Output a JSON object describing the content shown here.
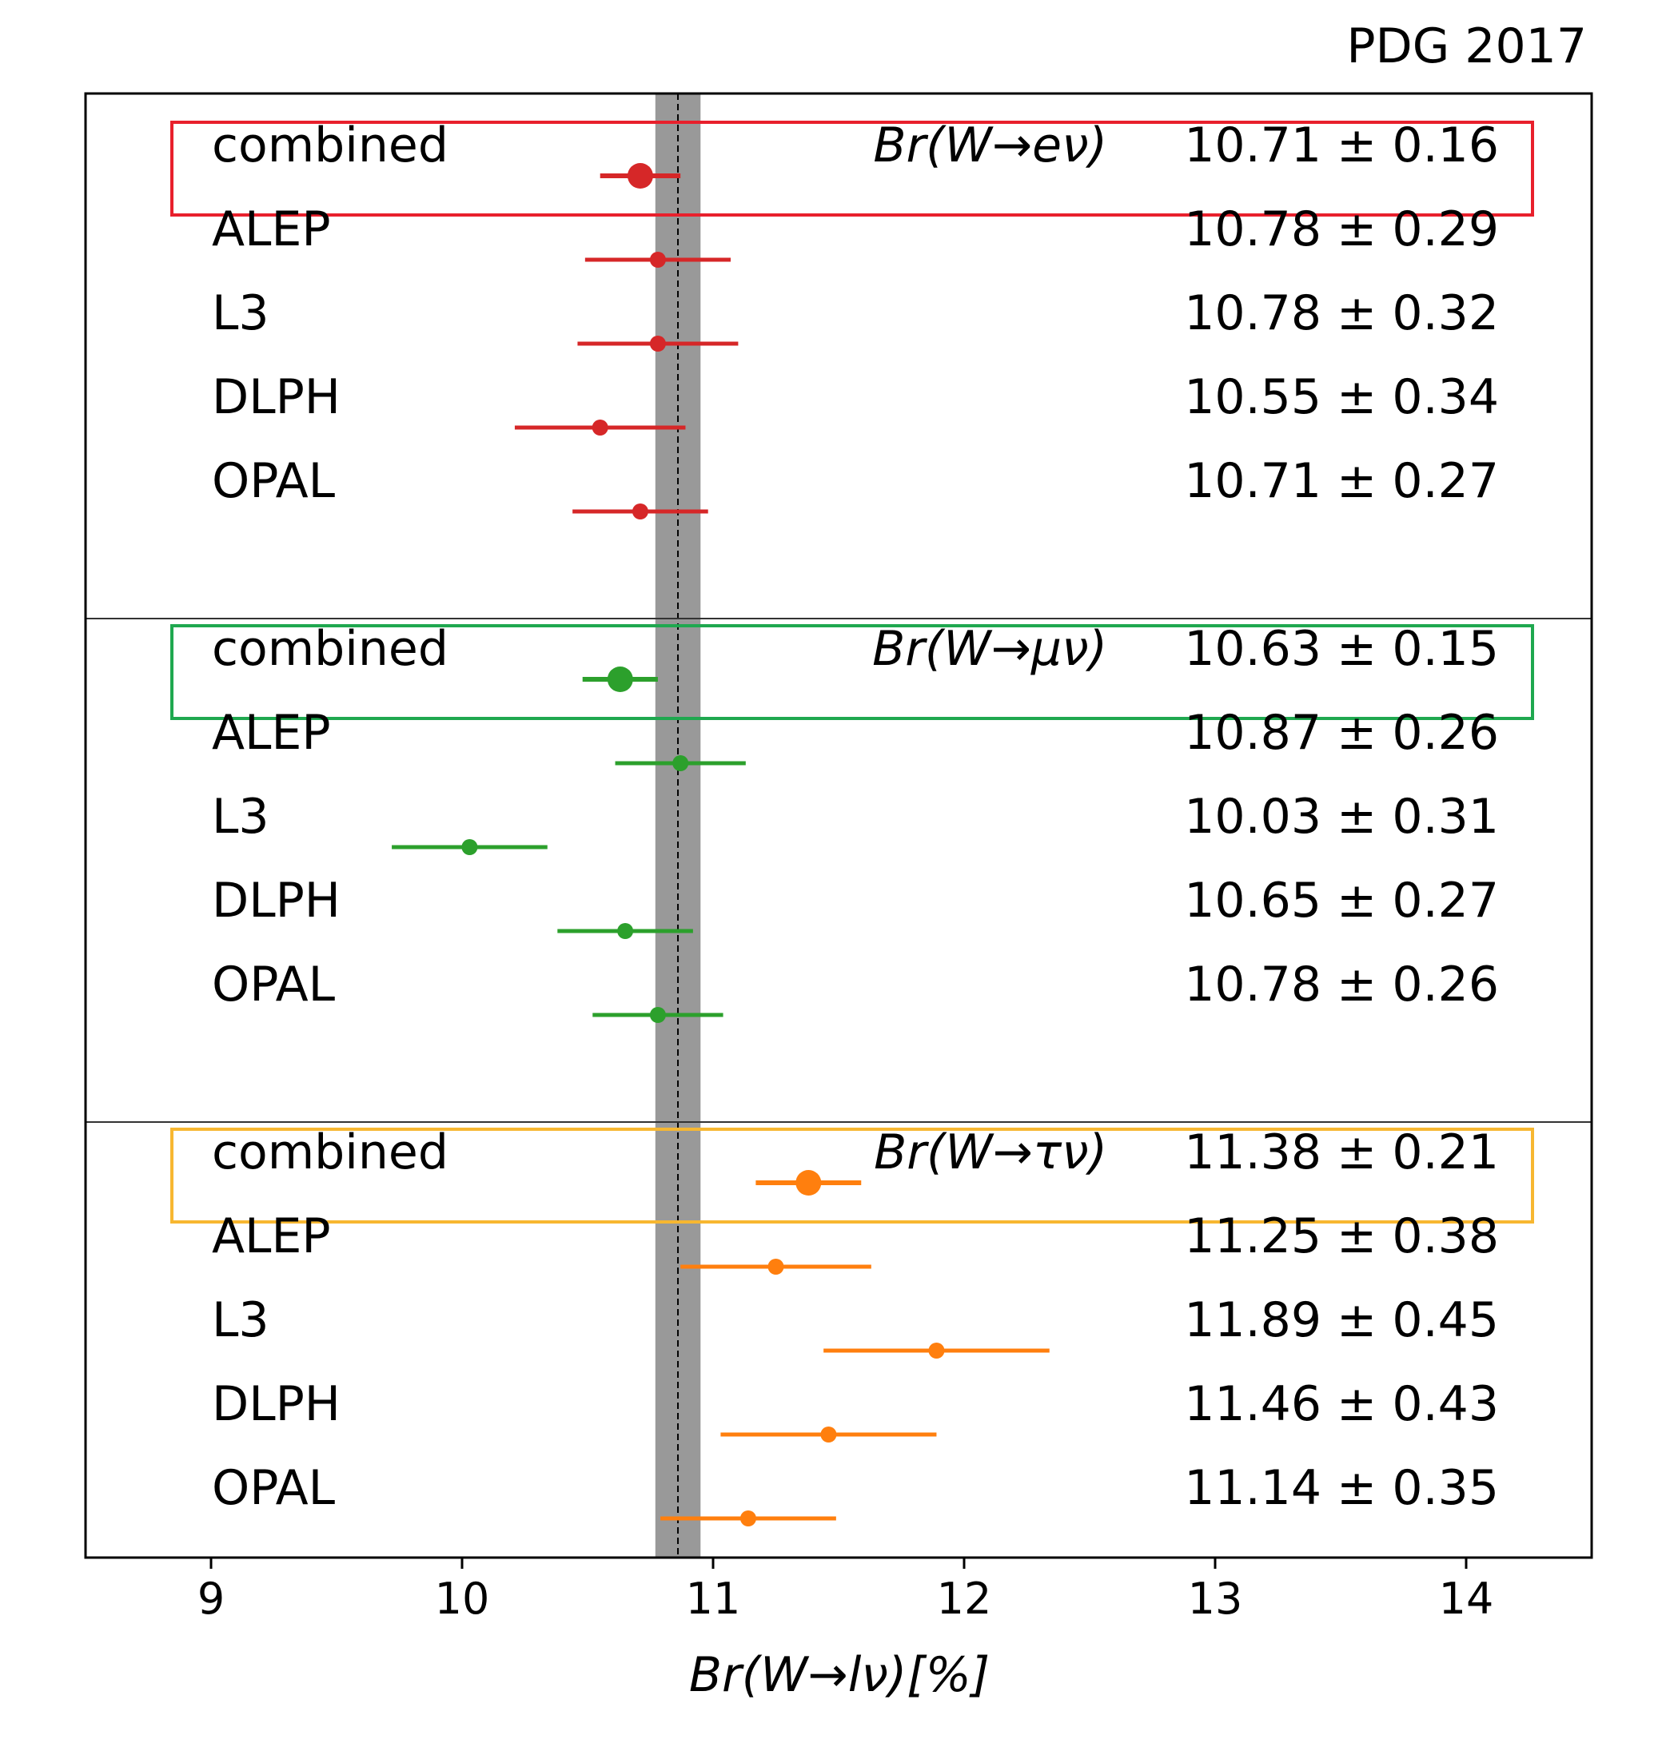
{
  "chart_data": {
    "type": "scatter",
    "title": "PDG 2017",
    "xlabel": "Br(W→lν)[%]",
    "xlim": [
      8.5,
      14.5
    ],
    "xticks": [
      9,
      10,
      11,
      12,
      13,
      14
    ],
    "average": 10.86,
    "band": [
      10.77,
      10.95
    ],
    "grid": false,
    "groups": [
      {
        "label": "Br(W→eν)",
        "color": "#d62728",
        "box_color": "#e8202c",
        "entries": [
          {
            "name": "combined",
            "value": 10.71,
            "error": 0.16,
            "text": "10.71 ± 0.16"
          },
          {
            "name": "ALEP",
            "value": 10.78,
            "error": 0.29,
            "text": "10.78 ± 0.29"
          },
          {
            "name": "L3",
            "value": 10.78,
            "error": 0.32,
            "text": "10.78 ± 0.32"
          },
          {
            "name": "DLPH",
            "value": 10.55,
            "error": 0.34,
            "text": "10.55 ± 0.34"
          },
          {
            "name": "OPAL",
            "value": 10.71,
            "error": 0.27,
            "text": "10.71 ± 0.27"
          }
        ]
      },
      {
        "label": "Br(W→μν)",
        "color": "#2ca02c",
        "box_color": "#1fa84f",
        "entries": [
          {
            "name": "combined",
            "value": 10.63,
            "error": 0.15,
            "text": "10.63 ± 0.15"
          },
          {
            "name": "ALEP",
            "value": 10.87,
            "error": 0.26,
            "text": "10.87 ± 0.26"
          },
          {
            "name": "L3",
            "value": 10.03,
            "error": 0.31,
            "text": "10.03 ± 0.31"
          },
          {
            "name": "DLPH",
            "value": 10.65,
            "error": 0.27,
            "text": "10.65 ± 0.27"
          },
          {
            "name": "OPAL",
            "value": 10.78,
            "error": 0.26,
            "text": "10.78 ± 0.26"
          }
        ]
      },
      {
        "label": "Br(W→τν)",
        "color": "#ff7f0e",
        "box_color": "#f7b731",
        "entries": [
          {
            "name": "combined",
            "value": 11.38,
            "error": 0.21,
            "text": "11.38 ± 0.21"
          },
          {
            "name": "ALEP",
            "value": 11.25,
            "error": 0.38,
            "text": "11.25 ± 0.38"
          },
          {
            "name": "L3",
            "value": 11.89,
            "error": 0.45,
            "text": "11.89 ± 0.45"
          },
          {
            "name": "DLPH",
            "value": 11.46,
            "error": 0.43,
            "text": "11.46 ± 0.43"
          },
          {
            "name": "OPAL",
            "value": 11.14,
            "error": 0.35,
            "text": "11.14 ± 0.35"
          }
        ]
      }
    ]
  }
}
